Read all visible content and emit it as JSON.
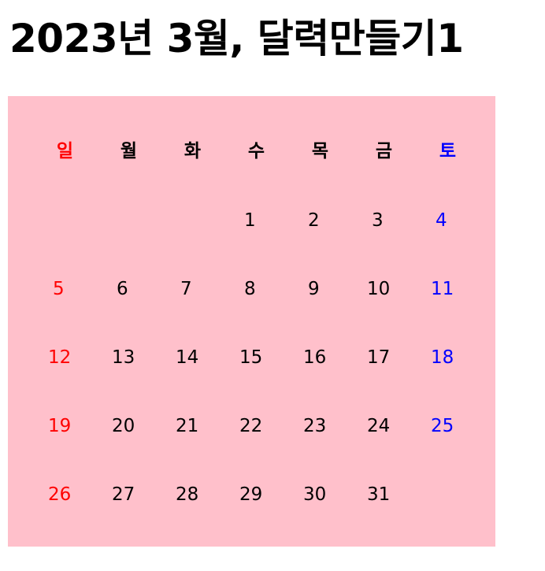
{
  "title": "2023년 3월, 달력만들기1",
  "colors": {
    "background": "#ffc0cb",
    "sunday": "#ff0000",
    "saturday": "#0000ff",
    "weekday": "#000000"
  },
  "weekdays": [
    "일",
    "월",
    "화",
    "수",
    "목",
    "금",
    "토"
  ],
  "weeks": [
    [
      "",
      "",
      "",
      "1",
      "2",
      "3",
      "4"
    ],
    [
      "5",
      "6",
      "7",
      "8",
      "9",
      "10",
      "11"
    ],
    [
      "12",
      "13",
      "14",
      "15",
      "16",
      "17",
      "18"
    ],
    [
      "19",
      "20",
      "21",
      "22",
      "23",
      "24",
      "25"
    ],
    [
      "26",
      "27",
      "28",
      "29",
      "30",
      "31",
      ""
    ]
  ]
}
